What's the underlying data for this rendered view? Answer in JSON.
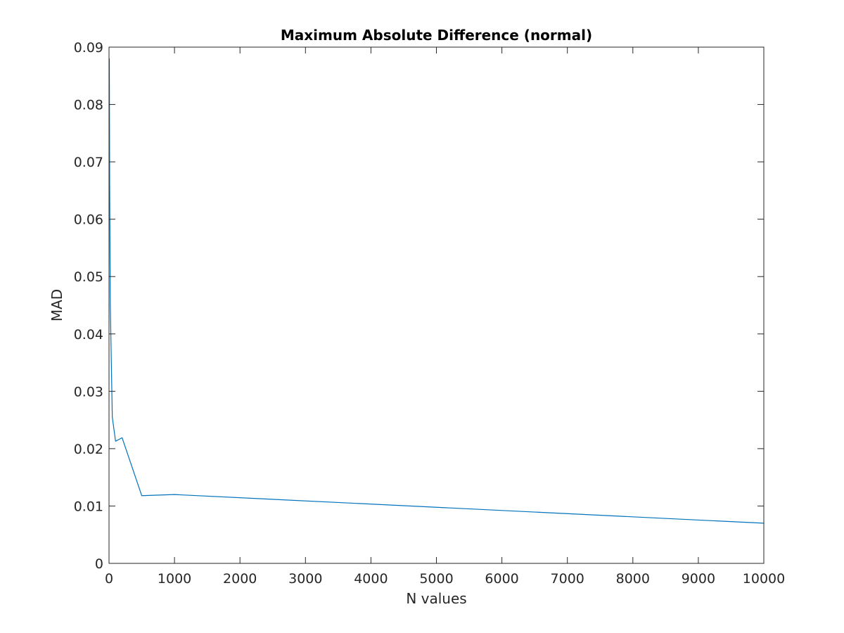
{
  "chart_data": {
    "type": "line",
    "title": "Maximum Absolute Difference (normal)",
    "xlabel": "N values",
    "ylabel": "MAD",
    "xlim": [
      0,
      10000
    ],
    "ylim": [
      0,
      0.09
    ],
    "xticks": [
      0,
      1000,
      2000,
      3000,
      4000,
      5000,
      6000,
      7000,
      8000,
      9000,
      10000
    ],
    "yticks": [
      0,
      0.01,
      0.02,
      0.03,
      0.04,
      0.05,
      0.06,
      0.07,
      0.08,
      0.09
    ],
    "xtick_labels": [
      "0",
      "1000",
      "2000",
      "3000",
      "4000",
      "5000",
      "6000",
      "7000",
      "8000",
      "9000",
      "10000"
    ],
    "ytick_labels": [
      "0",
      "0.01",
      "0.02",
      "0.03",
      "0.04",
      "0.05",
      "0.06",
      "0.07",
      "0.08",
      "0.09"
    ],
    "grid": false,
    "box": true,
    "series": [
      {
        "color": "#0072bd",
        "x": [
          5,
          10,
          20,
          50,
          100,
          200,
          500,
          1000,
          10000
        ],
        "y": [
          0.088,
          0.066,
          0.045,
          0.0255,
          0.0213,
          0.0219,
          0.0118,
          0.012,
          0.007
        ]
      }
    ]
  }
}
